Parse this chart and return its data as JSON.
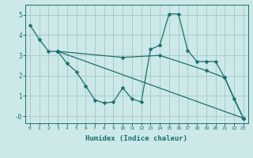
{
  "xlabel": "Humidex (Indice chaleur)",
  "bg_color": "#cce8e8",
  "grid_color": "#aacccc",
  "line_color": "#1a7070",
  "xlim": [
    -0.5,
    23.5
  ],
  "ylim": [
    -0.35,
    5.5
  ],
  "xticks": [
    0,
    1,
    2,
    3,
    4,
    5,
    6,
    7,
    8,
    9,
    10,
    11,
    12,
    13,
    14,
    15,
    16,
    17,
    18,
    19,
    20,
    21,
    22,
    23
  ],
  "yticks": [
    0,
    1,
    2,
    3,
    4,
    5
  ],
  "ytick_labels": [
    "-0",
    "1",
    "2",
    "3",
    "4",
    "5"
  ],
  "series": [
    {
      "x": [
        0,
        1,
        2,
        3
      ],
      "y": [
        4.5,
        3.8,
        3.2,
        3.2
      ]
    },
    {
      "x": [
        3,
        4,
        5,
        6,
        7,
        8,
        9,
        10,
        11,
        12,
        13,
        14,
        15,
        16,
        17,
        18,
        19,
        20,
        21,
        22,
        23
      ],
      "y": [
        3.2,
        2.6,
        2.2,
        1.5,
        0.8,
        0.65,
        0.7,
        1.4,
        0.85,
        0.7,
        3.3,
        3.5,
        5.05,
        5.05,
        3.25,
        2.7,
        2.7,
        2.7,
        1.9,
        0.85,
        -0.1
      ]
    },
    {
      "x": [
        3,
        23
      ],
      "y": [
        3.2,
        -0.1
      ]
    },
    {
      "x": [
        3,
        10,
        14,
        19,
        21,
        23
      ],
      "y": [
        3.2,
        2.9,
        3.0,
        2.25,
        1.9,
        -0.1
      ]
    }
  ]
}
